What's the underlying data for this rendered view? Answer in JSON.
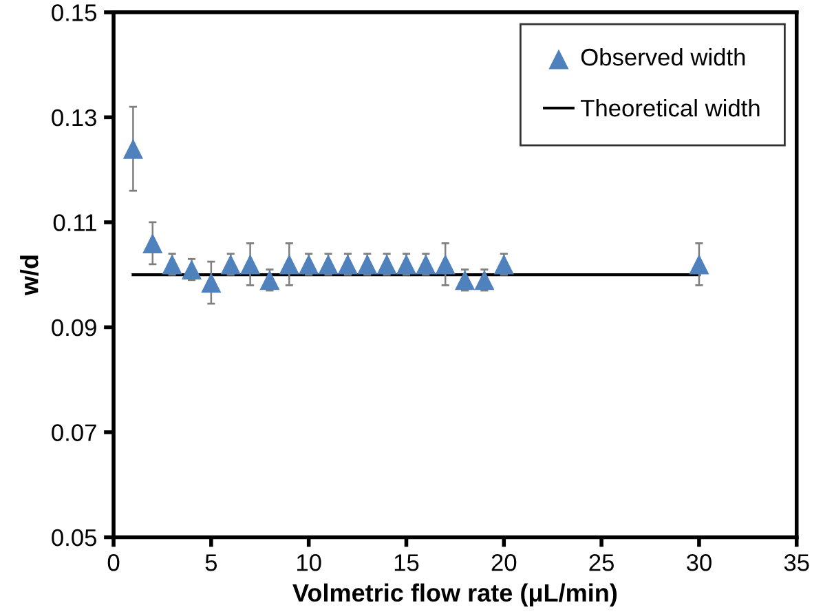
{
  "chart_data": {
    "type": "scatter",
    "xlabel": "Volmetric flow rate (μL/min)",
    "ylabel": "w/d",
    "xlim": [
      0,
      35
    ],
    "xticks": [
      0,
      5,
      10,
      15,
      20,
      25,
      30,
      35
    ],
    "ylim": [
      0.05,
      0.15
    ],
    "yticks": [
      {
        "value": 0.05,
        "label": "0.05"
      },
      {
        "value": 0.07,
        "label": "0.07"
      },
      {
        "value": 0.09,
        "label": "0.09"
      },
      {
        "value": 0.11,
        "label": "0.11"
      },
      {
        "value": 0.13,
        "label": "0.13"
      },
      {
        "value": 0.15,
        "label": "0.15"
      }
    ],
    "legend": "top right",
    "grid": false,
    "series": [
      {
        "name": "Observed width",
        "marker": "triangle",
        "color": "#4f81bd",
        "x": [
          1,
          2,
          3,
          4,
          5,
          6,
          7,
          8,
          9,
          10,
          11,
          12,
          13,
          14,
          15,
          16,
          17,
          18,
          19,
          20,
          30
        ],
        "values": [
          0.124,
          0.106,
          0.102,
          0.101,
          0.0985,
          0.102,
          0.102,
          0.099,
          0.102,
          0.102,
          0.102,
          0.102,
          0.102,
          0.102,
          0.102,
          0.102,
          0.102,
          0.099,
          0.099,
          0.102,
          0.102
        ],
        "errors": [
          0.008,
          0.004,
          0.002,
          0.002,
          0.004,
          0.002,
          0.004,
          0.002,
          0.004,
          0.002,
          0.002,
          0.002,
          0.002,
          0.002,
          0.002,
          0.002,
          0.004,
          0.002,
          0.002,
          0.002,
          0.004
        ]
      },
      {
        "name": "Theoretical width",
        "type": "line",
        "line_style": "solid",
        "color": "#000000",
        "x": [
          1,
          30
        ],
        "values": [
          0.1,
          0.1
        ]
      }
    ]
  }
}
